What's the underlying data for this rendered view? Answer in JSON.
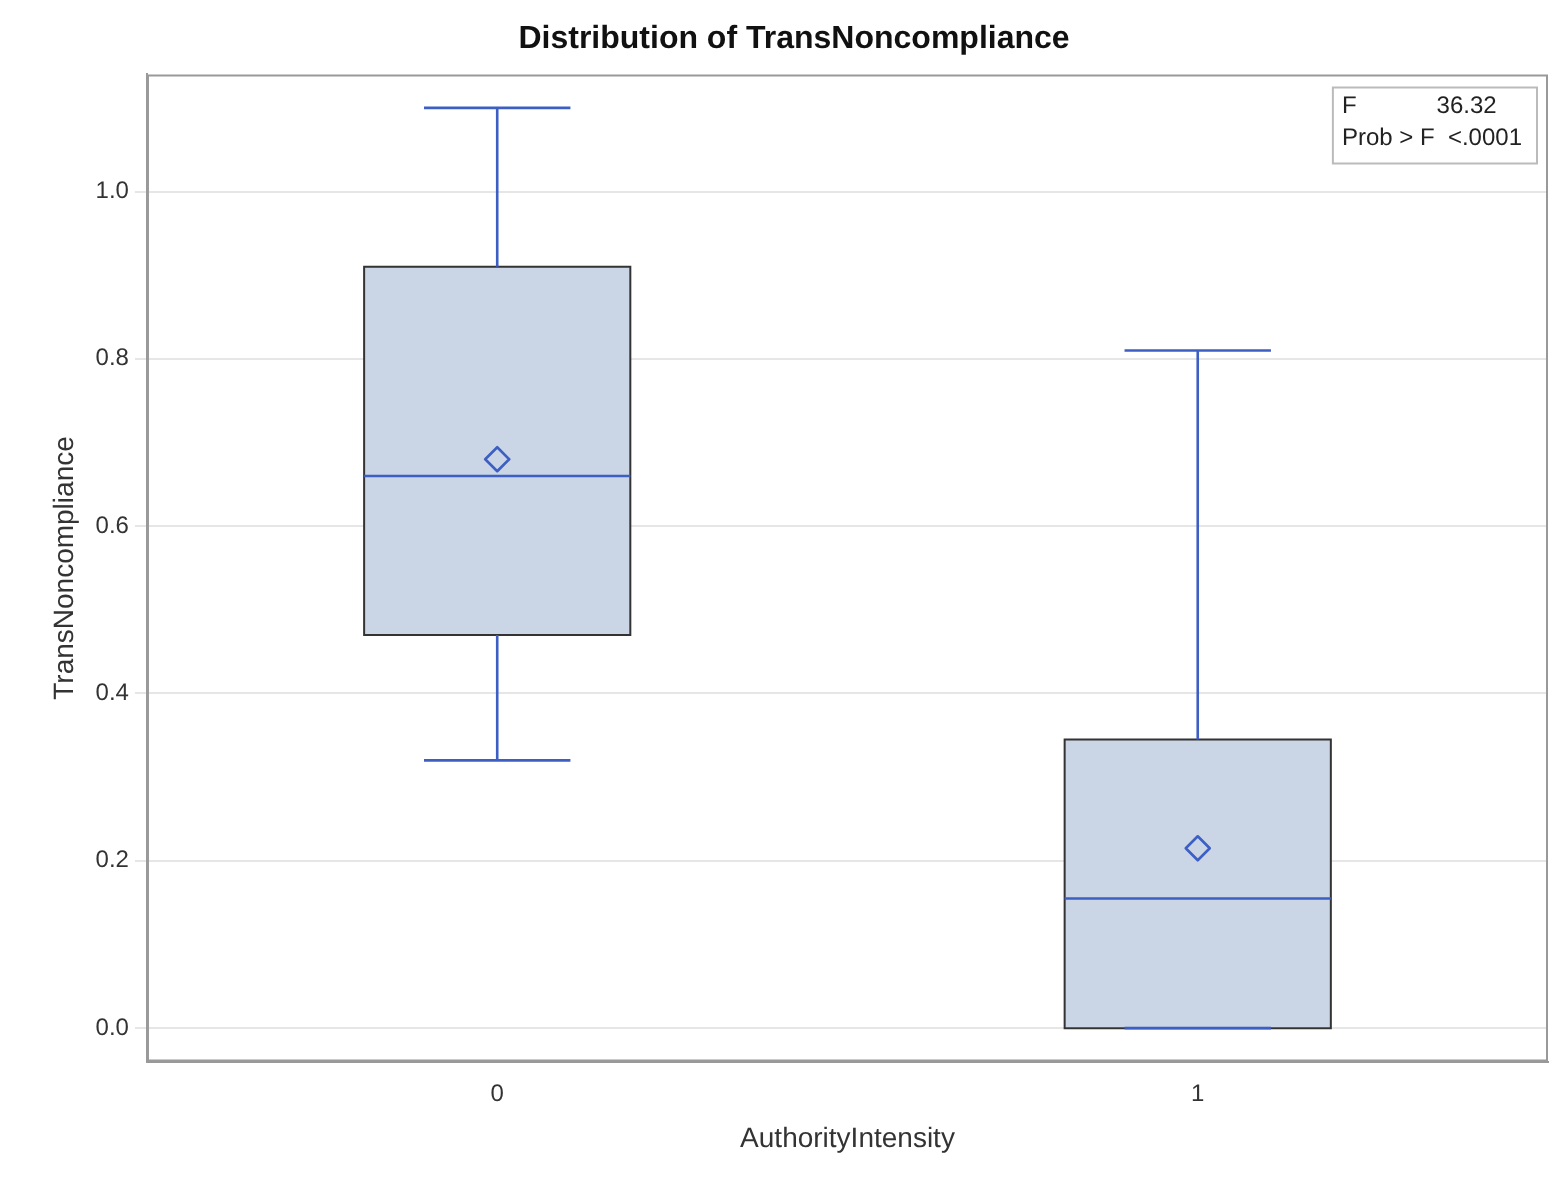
{
  "chart_data": {
    "type": "box",
    "title": "Distribution of TransNoncompliance",
    "xlabel": "AuthorityIntensity",
    "ylabel": "TransNoncompliance",
    "categories": [
      "0",
      "1"
    ],
    "boxes": [
      {
        "low": 0.32,
        "q1": 0.47,
        "median": 0.66,
        "q3": 0.91,
        "high": 1.1,
        "mean": 0.68
      },
      {
        "low": 0,
        "q1": 0,
        "median": 0.155,
        "q3": 0.345,
        "high": 0.81,
        "mean": 0.215
      }
    ],
    "color": "#cad5e5",
    "marker": "diamond",
    "ylim": [
      -0.04,
      1.14
    ],
    "yticks": [
      {
        "value": 0,
        "label": "0.0"
      },
      {
        "value": 0.2,
        "label": "0.2"
      },
      {
        "value": 0.4,
        "label": "0.4"
      },
      {
        "value": 0.6,
        "label": "0.6"
      },
      {
        "value": 0.8,
        "label": "0.8"
      },
      {
        "value": 1,
        "label": "1.0"
      }
    ],
    "grid": "y",
    "annotations": [
      "F            36.32",
      "Prob > F  <.0001"
    ]
  }
}
